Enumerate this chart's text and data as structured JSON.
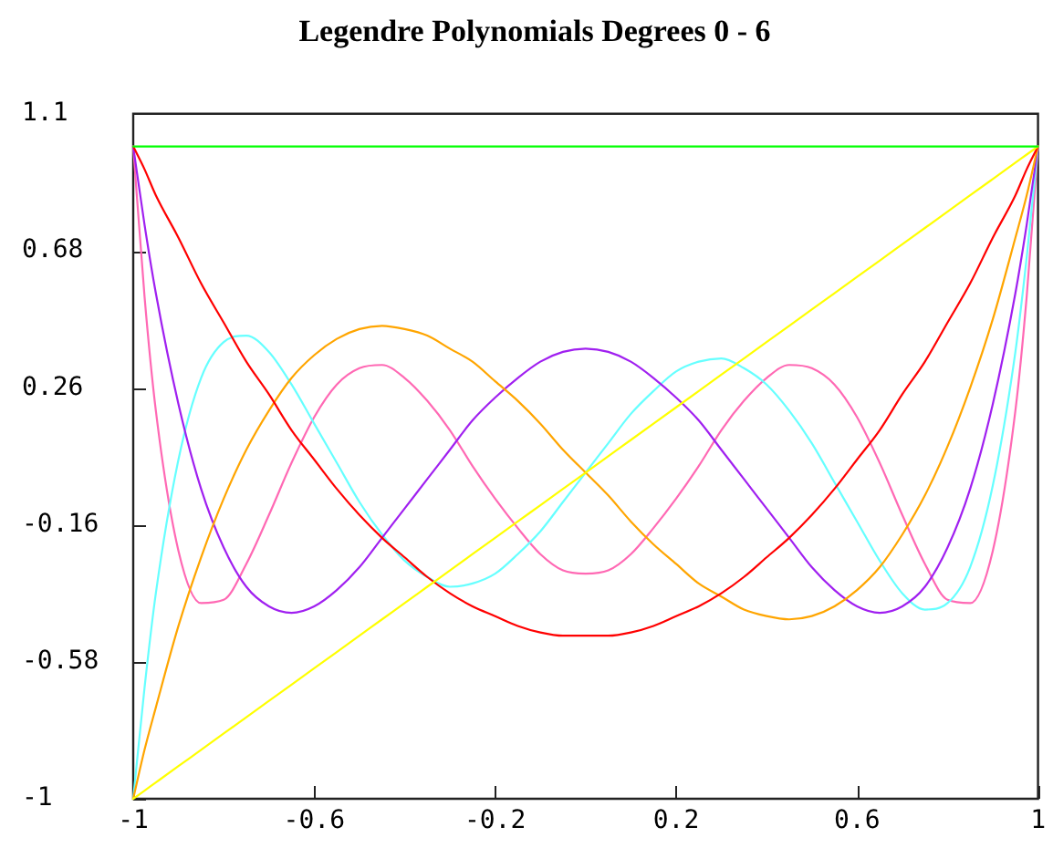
{
  "chart_data": {
    "type": "line",
    "title": "Legendre Polynomials Degrees 0 - 6",
    "x": [
      -1,
      -0.975,
      -0.95,
      -0.9,
      -0.85,
      -0.8,
      -0.75,
      -0.7,
      -0.65,
      -0.6,
      -0.55,
      -0.5,
      -0.45,
      -0.4,
      -0.35,
      -0.3,
      -0.25,
      -0.2,
      -0.15,
      -0.1,
      -0.05,
      0,
      0.05,
      0.1,
      0.15,
      0.2,
      0.25,
      0.3,
      0.35,
      0.4,
      0.45,
      0.5,
      0.55,
      0.6,
      0.65,
      0.7,
      0.75,
      0.8,
      0.85,
      0.9,
      0.95,
      0.975,
      1
    ],
    "series": [
      {
        "color": "#00ff00",
        "values": [
          1,
          1,
          1,
          1,
          1,
          1,
          1,
          1,
          1,
          1,
          1,
          1,
          1,
          1,
          1,
          1,
          1,
          1,
          1,
          1,
          1,
          1,
          1,
          1,
          1,
          1,
          1,
          1,
          1,
          1,
          1,
          1,
          1,
          1,
          1,
          1,
          1,
          1,
          1,
          1,
          1,
          1,
          1
        ]
      },
      {
        "color": "#ffff00",
        "values": [
          -1,
          -0.975,
          -0.95,
          -0.9,
          -0.85,
          -0.8,
          -0.75,
          -0.7,
          -0.65,
          -0.6,
          -0.55,
          -0.5,
          -0.45,
          -0.4,
          -0.35,
          -0.3,
          -0.25,
          -0.2,
          -0.15,
          -0.1,
          -0.05,
          0,
          0.05,
          0.1,
          0.15,
          0.2,
          0.25,
          0.3,
          0.35,
          0.4,
          0.45,
          0.5,
          0.55,
          0.6,
          0.65,
          0.7,
          0.75,
          0.8,
          0.85,
          0.9,
          0.95,
          0.975,
          1
        ]
      },
      {
        "color": "#ff0000",
        "values": [
          1,
          0.93,
          0.85,
          0.72,
          0.58,
          0.46,
          0.34,
          0.24,
          0.13,
          0.04,
          -0.05,
          -0.13,
          -0.2,
          -0.26,
          -0.32,
          -0.37,
          -0.41,
          -0.44,
          -0.47,
          -0.49,
          -0.5,
          -0.5,
          -0.5,
          -0.49,
          -0.47,
          -0.44,
          -0.41,
          -0.37,
          -0.32,
          -0.26,
          -0.2,
          -0.13,
          -0.05,
          0.04,
          0.13,
          0.24,
          0.34,
          0.46,
          0.58,
          0.72,
          0.85,
          0.93,
          1
        ]
      },
      {
        "color": "#ffa500",
        "values": [
          -1,
          -0.85,
          -0.72,
          -0.47,
          -0.26,
          -0.08,
          0.07,
          0.19,
          0.29,
          0.36,
          0.41,
          0.44,
          0.45,
          0.44,
          0.42,
          0.38,
          0.34,
          0.28,
          0.22,
          0.15,
          0.07,
          0,
          -0.07,
          -0.15,
          -0.22,
          -0.28,
          -0.34,
          -0.38,
          -0.42,
          -0.44,
          -0.45,
          -0.44,
          -0.41,
          -0.36,
          -0.29,
          -0.19,
          -0.07,
          0.08,
          0.26,
          0.47,
          0.72,
          0.85,
          1
        ]
      },
      {
        "color": "#a020f0",
        "values": [
          1,
          0.76,
          0.55,
          0.21,
          -0.05,
          -0.23,
          -0.35,
          -0.41,
          -0.43,
          -0.41,
          -0.36,
          -0.29,
          -0.2,
          -0.11,
          -0.02,
          0.07,
          0.16,
          0.23,
          0.29,
          0.34,
          0.37,
          0.38,
          0.37,
          0.34,
          0.29,
          0.23,
          0.16,
          0.07,
          -0.02,
          -0.11,
          -0.2,
          -0.29,
          -0.36,
          -0.41,
          -0.43,
          -0.41,
          -0.35,
          -0.23,
          -0.05,
          0.21,
          0.55,
          0.76,
          1
        ]
      },
      {
        "color": "#66ffff",
        "values": [
          -1,
          -0.66,
          -0.37,
          0.04,
          0.29,
          0.4,
          0.42,
          0.37,
          0.27,
          0.15,
          0.03,
          -0.09,
          -0.19,
          -0.27,
          -0.32,
          -0.35,
          -0.34,
          -0.31,
          -0.25,
          -0.18,
          -0.09,
          0,
          0.09,
          0.18,
          0.25,
          0.31,
          0.34,
          0.35,
          0.32,
          0.27,
          0.19,
          0.09,
          -0.03,
          -0.15,
          -0.27,
          -0.37,
          -0.42,
          -0.4,
          -0.29,
          -0.04,
          0.37,
          0.66,
          1
        ]
      },
      {
        "color": "#ff69b4",
        "values": [
          1,
          0.54,
          0.19,
          -0.24,
          -0.4,
          -0.39,
          -0.28,
          -0.13,
          0.03,
          0.17,
          0.27,
          0.32,
          0.33,
          0.29,
          0.22,
          0.13,
          0.02,
          -0.08,
          -0.17,
          -0.25,
          -0.3,
          -0.31,
          -0.3,
          -0.25,
          -0.17,
          -0.08,
          0.02,
          0.13,
          0.22,
          0.29,
          0.33,
          0.32,
          0.27,
          0.17,
          0.03,
          -0.13,
          -0.28,
          -0.39,
          -0.4,
          -0.24,
          0.19,
          0.54,
          1
        ]
      }
    ],
    "xlim": [
      -1,
      1
    ],
    "xticks": [
      -1,
      -0.6,
      -0.2,
      0.2,
      0.6,
      1
    ],
    "ylim": [
      -1,
      1.1
    ],
    "yticks": [
      -1,
      -0.58,
      -0.16,
      0.26,
      0.68,
      1.1
    ],
    "grid": false,
    "legend": false,
    "marker": "none",
    "line_style": "solid"
  }
}
